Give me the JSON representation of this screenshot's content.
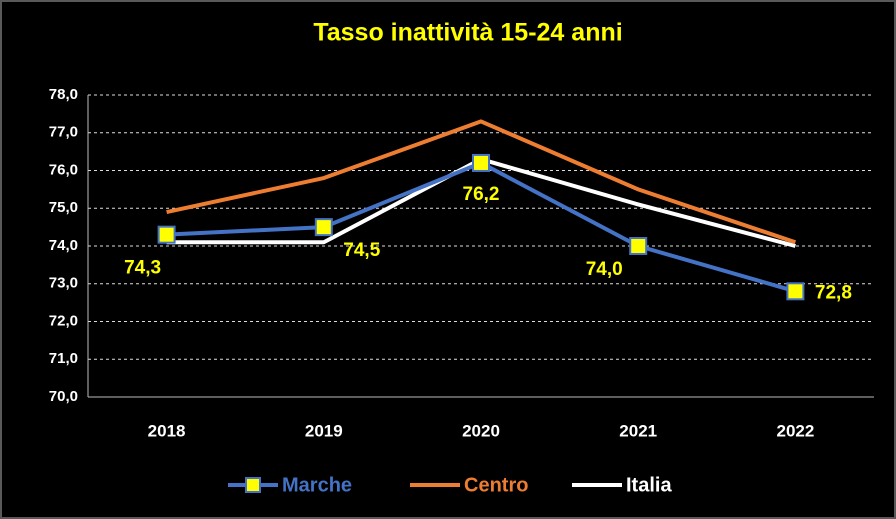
{
  "chart_data": {
    "type": "line",
    "title": "Tasso inattività 15-24 anni",
    "categories": [
      "2018",
      "2019",
      "2020",
      "2021",
      "2022"
    ],
    "series": [
      {
        "name": "Marche",
        "color": "#4472c4",
        "values": [
          74.3,
          74.5,
          76.2,
          74.0,
          72.8
        ],
        "value_labels": [
          "74,3",
          "74,5",
          "76,2",
          "74,0",
          "72,8"
        ],
        "marker_color": "#ffff00"
      },
      {
        "name": "Centro",
        "color": "#ed7d31",
        "values": [
          74.9,
          75.8,
          77.3,
          75.5,
          74.1
        ]
      },
      {
        "name": "Italia",
        "color": "#ffffff",
        "values": [
          74.1,
          74.1,
          76.3,
          75.1,
          74.0
        ]
      }
    ],
    "ylim": [
      70,
      78
    ],
    "yticks": [
      {
        "value": 70,
        "label": "70,0"
      },
      {
        "value": 71,
        "label": "71,0"
      },
      {
        "value": 72,
        "label": "72,0"
      },
      {
        "value": 73,
        "label": "73,0"
      },
      {
        "value": 74,
        "label": "74,0"
      },
      {
        "value": 75,
        "label": "75,0"
      },
      {
        "value": 76,
        "label": "76,0"
      },
      {
        "value": 77,
        "label": "77,0"
      },
      {
        "value": 78,
        "label": "78,0"
      }
    ],
    "grid": true,
    "legend": "bottom",
    "title_color": "#ffff00",
    "label_color": "#ffff00"
  }
}
